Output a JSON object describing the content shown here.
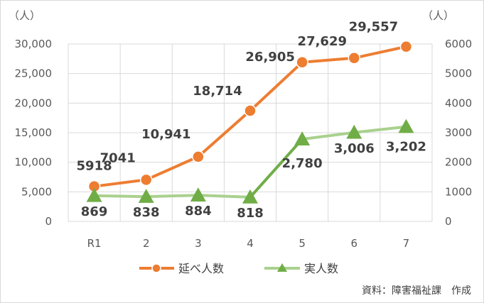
{
  "chart_data": {
    "type": "line",
    "categories": [
      "R1",
      "2",
      "3",
      "4",
      "5",
      "6",
      "7"
    ],
    "y_left": {
      "unit": "（人）",
      "range": [
        0,
        30000
      ],
      "ticks": [
        "0",
        "5,000",
        "10,000",
        "15,000",
        "20,000",
        "25,000",
        "30,000"
      ]
    },
    "y_right": {
      "unit": "（人）",
      "range": [
        0,
        6000
      ],
      "ticks": [
        "0",
        "1000",
        "2000",
        "3000",
        "4000",
        "5000",
        "6000"
      ]
    },
    "series": [
      {
        "name": "延べ人数",
        "axis": "left",
        "color": "#ED7D31",
        "marker": "circle",
        "values": [
          5918,
          7041,
          10941,
          18714,
          26905,
          27629,
          29557
        ],
        "labels": [
          "5918",
          "7041",
          "10,941",
          "18,714",
          "26,905",
          "27,629",
          "29,557"
        ]
      },
      {
        "name": "実人数",
        "axis": "right",
        "colors": {
          "segment_low": "#A9D18E",
          "segment_jump": "#70AD47",
          "marker": "#70AD47"
        },
        "marker": "triangle",
        "values": [
          869,
          838,
          884,
          818,
          2780,
          3006,
          3202
        ],
        "labels": [
          "869",
          "838",
          "884",
          "818",
          "2,780",
          "3,006",
          "3,202"
        ]
      }
    ],
    "grid": true,
    "legend_position": "bottom",
    "source": "資料：障害福祉課　作成"
  }
}
